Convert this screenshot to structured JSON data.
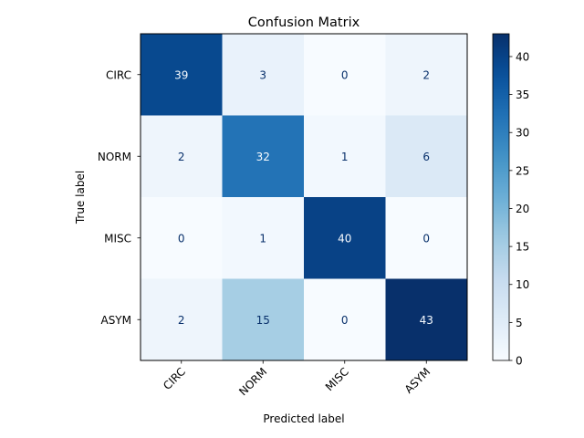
{
  "chart_data": {
    "type": "heatmap",
    "title": "Confusion Matrix",
    "xlabel": "Predicted label",
    "ylabel": "True label",
    "x_categories": [
      "CIRC",
      "NORM",
      "MISC",
      "ASYM"
    ],
    "y_categories": [
      "CIRC",
      "NORM",
      "MISC",
      "ASYM"
    ],
    "matrix": [
      [
        39,
        3,
        0,
        2
      ],
      [
        2,
        32,
        1,
        6
      ],
      [
        0,
        1,
        40,
        0
      ],
      [
        2,
        15,
        0,
        43
      ]
    ],
    "colormap": "Blues",
    "colorbar": {
      "vmin": 0,
      "vmax": 43,
      "ticks": [
        0,
        5,
        10,
        15,
        20,
        25,
        30,
        35,
        40
      ]
    },
    "x_tick_rotation_deg": 45,
    "grid": false
  }
}
